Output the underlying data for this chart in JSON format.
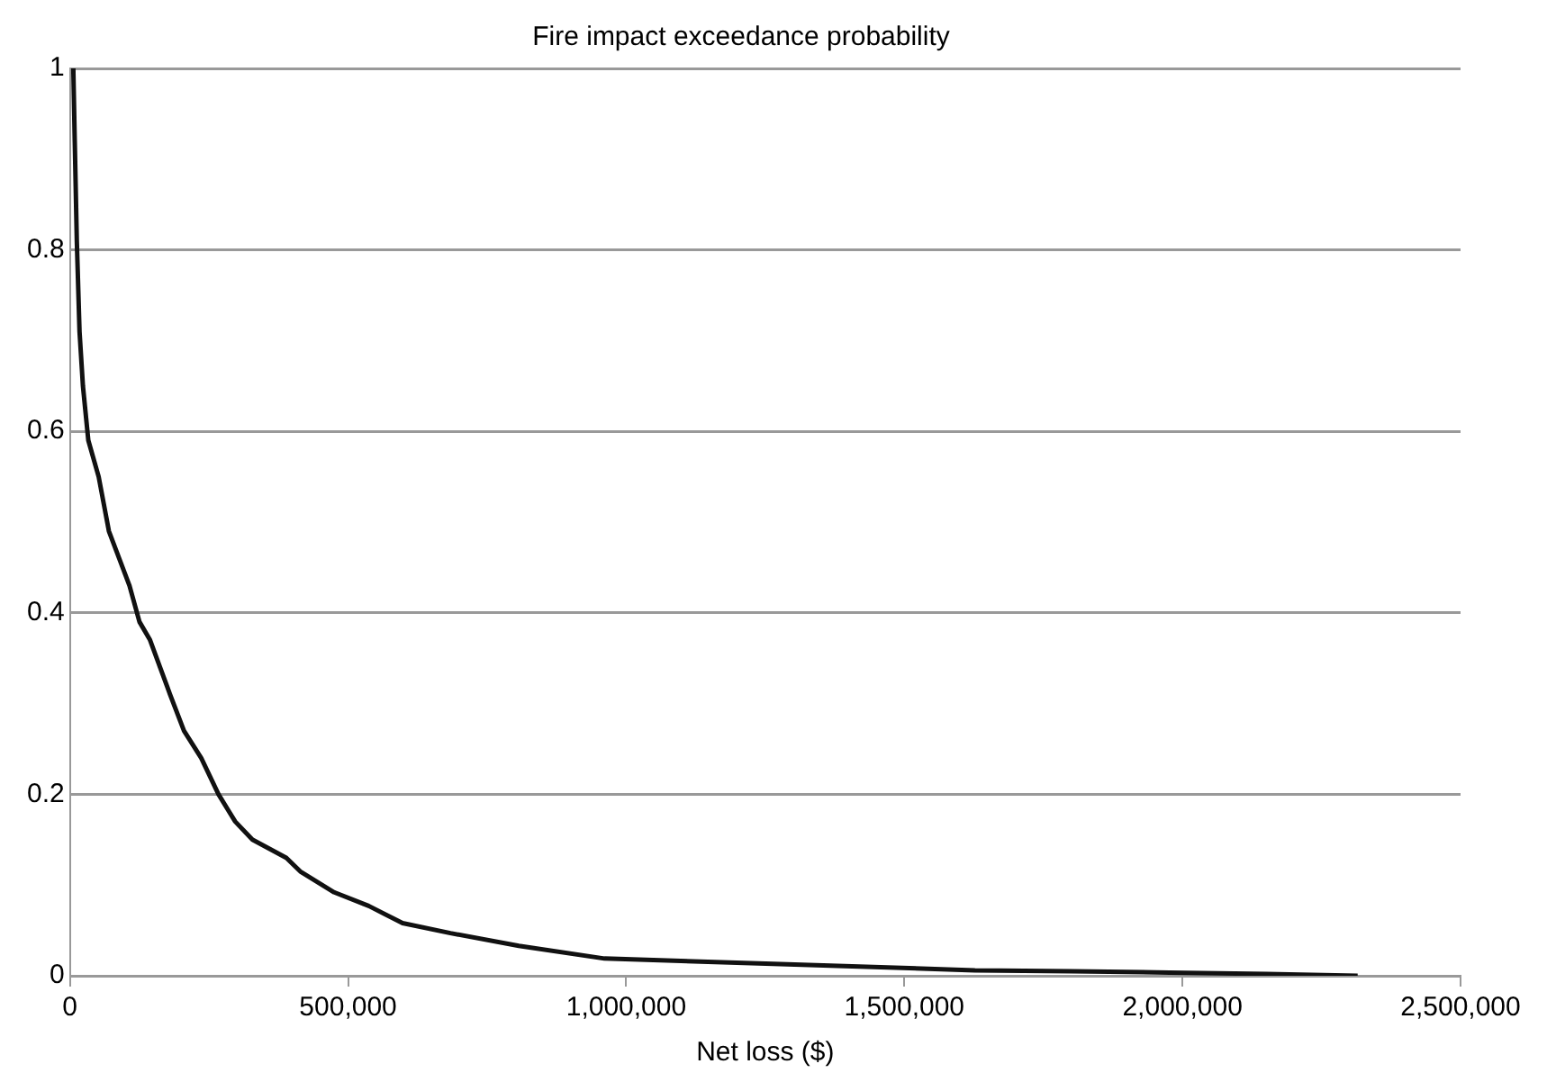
{
  "chart_data": {
    "type": "line",
    "title": "Fire impact exceedance probability",
    "xlabel": "Net loss ($)",
    "x": [
      6000,
      8600,
      12300,
      17200,
      23300,
      33000,
      51600,
      70000,
      88500,
      107000,
      125000,
      144000,
      162000,
      180000,
      205000,
      236000,
      267000,
      297000,
      328000,
      389000,
      414000,
      475000,
      537000,
      598000,
      684000,
      807000,
      961000,
      1277000,
      1627000,
      1802000,
      1977000,
      2152000,
      2315000
    ],
    "series": [
      {
        "color": "#111111",
        "values": [
          1.0,
          0.92,
          0.81,
          0.71,
          0.65,
          0.59,
          0.55,
          0.49,
          0.46,
          0.43,
          0.39,
          0.37,
          0.34,
          0.31,
          0.27,
          0.24,
          0.2,
          0.17,
          0.15,
          0.13,
          0.115,
          0.092,
          0.077,
          0.058,
          0.047,
          0.033,
          0.019,
          0.013,
          0.006,
          0.005,
          0.0035,
          0.002,
          0.0
        ]
      }
    ],
    "xlim": [
      0,
      2500000
    ],
    "xticks": [
      0,
      {
        "value": 500000,
        "label": "500,000"
      },
      {
        "value": 1000000,
        "label": "1,000,000"
      },
      {
        "value": 1500000,
        "label": "1,500,000"
      },
      {
        "value": 2000000,
        "label": "2,000,000"
      },
      {
        "value": 2500000,
        "label": "2,500,000"
      }
    ],
    "ylim": [
      0,
      1
    ],
    "yticks": [
      0,
      0.2,
      0.4,
      0.6,
      0.8,
      1
    ],
    "grid": "y",
    "legend": false,
    "marker": "none",
    "line_style": "solid"
  }
}
